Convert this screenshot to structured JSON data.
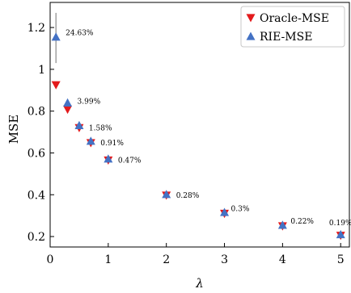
{
  "chart_data": {
    "type": "scatter",
    "title": "",
    "xlabel": "λ",
    "ylabel": "MSE",
    "xlim": [
      0,
      5.15
    ],
    "ylim": [
      0.15,
      1.32
    ],
    "xticks": [
      "0",
      "1",
      "2",
      "3",
      "4",
      "5"
    ],
    "yticks": [
      "0.2",
      "0.4",
      "0.6",
      "0.8",
      "1",
      "1.2"
    ],
    "legend_position": "top-right",
    "series": [
      {
        "name": "Oracle-MSE",
        "marker": "triangle-down",
        "color": "#e31a1c",
        "x": [
          0.1,
          0.3,
          0.5,
          0.7,
          1,
          2,
          3,
          4,
          5
        ],
        "y": [
          0.925,
          0.808,
          0.72,
          0.648,
          0.565,
          0.397,
          0.31,
          0.25,
          0.205
        ]
      },
      {
        "name": "RIE-MSE",
        "marker": "triangle-up",
        "color": "#4472c4",
        "x": [
          0.1,
          0.3,
          0.5,
          0.7,
          1,
          2,
          3,
          4,
          5
        ],
        "y": [
          1.155,
          0.84,
          0.732,
          0.657,
          0.572,
          0.402,
          0.316,
          0.255,
          0.21
        ],
        "error_bar_first": [
          1.03,
          1.27
        ]
      }
    ],
    "annotations": [
      {
        "text": "24.63%",
        "x": 0.1,
        "y": 1.155
      },
      {
        "text": "3.99%",
        "x": 0.3,
        "y": 0.808
      },
      {
        "text": "1.58%",
        "x": 0.5,
        "y": 0.72
      },
      {
        "text": "0.91%",
        "x": 0.7,
        "y": 0.648
      },
      {
        "text": "0.47%",
        "x": 1,
        "y": 0.565
      },
      {
        "text": "0.28%",
        "x": 2,
        "y": 0.397
      },
      {
        "text": "0.3%",
        "x": 3,
        "y": 0.31
      },
      {
        "text": "0.22%",
        "x": 4,
        "y": 0.25
      },
      {
        "text": "0.19%",
        "x": 5,
        "y": 0.205
      }
    ]
  }
}
